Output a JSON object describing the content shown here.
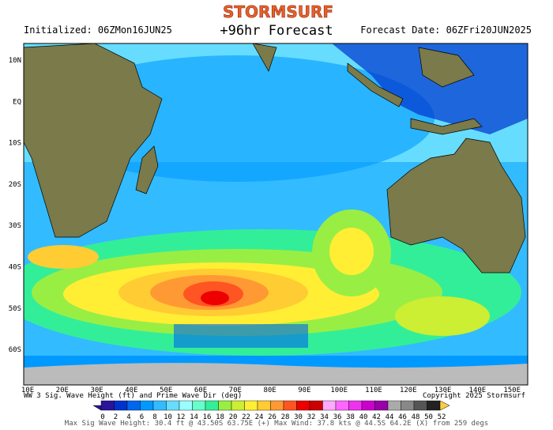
{
  "brand": "STORMSURF",
  "initialized": "Initialized: 06ZMon16JUN25",
  "title": "+96hr Forecast",
  "forecast_date": "Forecast Date: 06ZFri20JUN2025",
  "lat_labels": [
    "10N",
    "EQ",
    "10S",
    "20S",
    "30S",
    "40S",
    "50S",
    "60S"
  ],
  "lon_labels": [
    "10E",
    "20E",
    "30E",
    "40E",
    "50E",
    "60E",
    "70E",
    "80E",
    "90E",
    "100E",
    "110E",
    "120E",
    "130E",
    "140E",
    "150E"
  ],
  "caption": "WW 3 Sig. Wave Height (ft) and Prime Wave Dir (deg)",
  "copyright": "Copyright 2025 Stormsurf",
  "scale": {
    "labels": [
      "0",
      "2",
      "4",
      "6",
      "8",
      "10",
      "12",
      "14",
      "16",
      "18",
      "20",
      "22",
      "24",
      "26",
      "28",
      "30",
      "32",
      "34",
      "36",
      "38",
      "40",
      "42",
      "44",
      "46",
      "48",
      "50",
      "52"
    ],
    "colors": [
      "#2a149a",
      "#0033cc",
      "#0066ee",
      "#0099ff",
      "#33bbff",
      "#66ddff",
      "#99ffff",
      "#66ffcc",
      "#33ee99",
      "#99ee44",
      "#ccee33",
      "#ffee33",
      "#ffcc33",
      "#ff9933",
      "#ff5522",
      "#ee0000",
      "#cc0000",
      "#ffaaff",
      "#ff66ff",
      "#ee33ee",
      "#cc00cc",
      "#9900aa",
      "#aaaaaa",
      "#888888",
      "#555555",
      "#222222",
      "#ffcc44"
    ]
  },
  "footer": "Max Sig Wave Height: 30.4 ft @ 43.50S 63.75E (+)   Max Wind: 37.8 kts @ 44.5S 64.2E (X) from 259 degs"
}
